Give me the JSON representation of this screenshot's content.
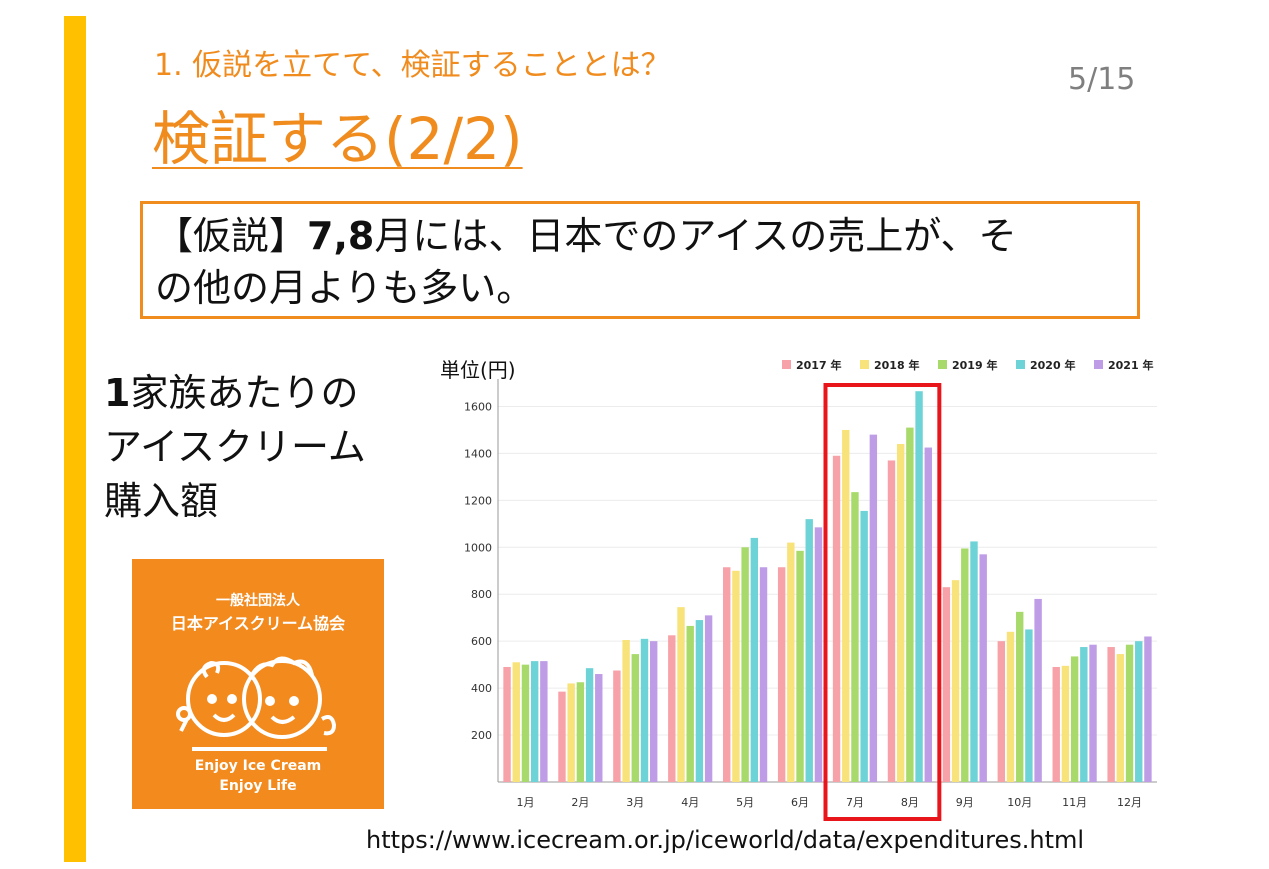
{
  "header": {
    "subtitle": "1. 仮説を立てて、検証することとは？",
    "title": "検証する(2/2)",
    "page_number": "5/15"
  },
  "hypothesis": {
    "tag": "【仮説】",
    "months": "7,8",
    "text_line1_rest": "月には、日本でのアイスの売上が、そ",
    "text_line2": "の他の月よりも多い。"
  },
  "side_label": {
    "line1_num": "1",
    "line1_rest": "家族あたりの",
    "line2": "アイスクリーム",
    "line3": "購入額"
  },
  "logo": {
    "org_type": "一般社団法人",
    "org_name": "日本アイスクリーム協会",
    "slogan1": "Enjoy Ice Cream",
    "slogan2": "Enjoy Life"
  },
  "source": {
    "url": "https://www.icecream.or.jp/iceworld/data/expenditures.html"
  },
  "colors": {
    "accent": "#F08B1E",
    "bar": "#FFC000",
    "highlight": "#E8151B",
    "logo_bg": "#F28A1E"
  },
  "chart_data": {
    "type": "bar",
    "ylabel": "単位(円)",
    "ylim": [
      0,
      1700
    ],
    "yticks": [
      200,
      400,
      600,
      800,
      1000,
      1200,
      1400,
      1600
    ],
    "grid": true,
    "legend": "top-right",
    "categories": [
      "1月",
      "2月",
      "3月",
      "4月",
      "5月",
      "6月",
      "7月",
      "8月",
      "9月",
      "10月",
      "11月",
      "12月"
    ],
    "series": [
      {
        "name": "2017 年",
        "color": "#F7A1A8",
        "values": [
          490,
          385,
          475,
          625,
          915,
          915,
          1390,
          1370,
          830,
          600,
          490,
          575
        ]
      },
      {
        "name": "2018 年",
        "color": "#F8E27A",
        "values": [
          510,
          420,
          605,
          745,
          900,
          1020,
          1500,
          1440,
          860,
          640,
          495,
          545
        ]
      },
      {
        "name": "2019 年",
        "color": "#A8DA6B",
        "values": [
          500,
          425,
          545,
          665,
          1000,
          985,
          1235,
          1510,
          995,
          725,
          535,
          585
        ]
      },
      {
        "name": "2020 年",
        "color": "#6ED3D6",
        "values": [
          515,
          485,
          610,
          690,
          1040,
          1120,
          1155,
          1665,
          1025,
          650,
          575,
          600
        ]
      },
      {
        "name": "2021 年",
        "color": "#BE9CE6",
        "values": [
          515,
          460,
          600,
          710,
          915,
          1085,
          1480,
          1425,
          970,
          780,
          585,
          620
        ]
      }
    ],
    "highlight_categories": [
      "7月",
      "8月"
    ]
  }
}
